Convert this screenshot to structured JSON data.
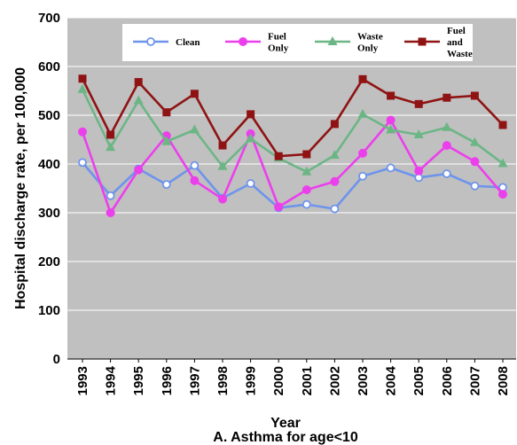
{
  "chart_data": {
    "type": "line",
    "title": "A. Asthma for age<10",
    "xlabel": "Year",
    "ylabel": "Hospital discharge rate, per 100,000",
    "ylim": [
      0,
      700
    ],
    "yticks": [
      "0",
      "100",
      "200",
      "300",
      "400",
      "500",
      "600",
      "700"
    ],
    "categories": [
      "1993",
      "1994",
      "1995",
      "1996",
      "1997",
      "1998",
      "1999",
      "2000",
      "2001",
      "2002",
      "2003",
      "2004",
      "2005",
      "2006",
      "2007",
      "2008"
    ],
    "grid": true,
    "legend_position": "top",
    "series": [
      {
        "name": "Clean",
        "label_lines": [
          "Clean"
        ],
        "color": "#6e94ec",
        "marker": "open-circle",
        "values": [
          403,
          335,
          390,
          358,
          397,
          330,
          360,
          310,
          317,
          308,
          375,
          392,
          372,
          380,
          355,
          352
        ]
      },
      {
        "name": "Fuel Only",
        "label_lines": [
          "Fuel",
          "Only"
        ],
        "color": "#ec3fec",
        "marker": "circle",
        "values": [
          466,
          300,
          388,
          458,
          366,
          328,
          462,
          312,
          347,
          364,
          422,
          490,
          386,
          438,
          405,
          338
        ]
      },
      {
        "name": "Waste Only",
        "label_lines": [
          "Waste",
          "Only"
        ],
        "color": "#6cb686",
        "marker": "triangle",
        "values": [
          553,
          434,
          530,
          446,
          470,
          395,
          452,
          412,
          384,
          418,
          502,
          470,
          460,
          475,
          444,
          401
        ]
      },
      {
        "name": "Fuel and Waste",
        "label_lines": [
          "Fuel",
          "and",
          "Waste"
        ],
        "color": "#8f1313",
        "marker": "square",
        "values": [
          575,
          460,
          568,
          506,
          544,
          438,
          502,
          416,
          420,
          482,
          574,
          540,
          523,
          536,
          540,
          480
        ]
      }
    ]
  }
}
